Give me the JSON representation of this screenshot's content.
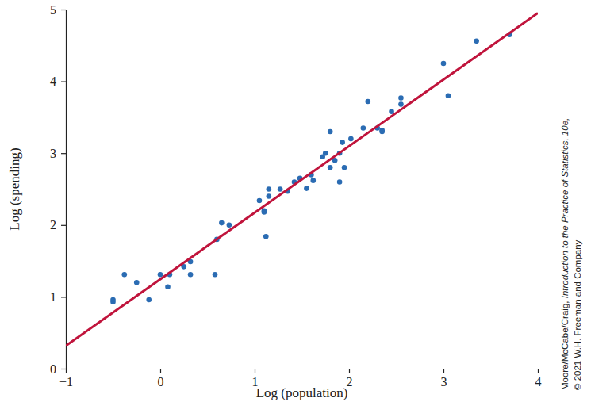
{
  "chart_data": {
    "type": "scatter",
    "x_label": "Log (population)",
    "y_label": "Log (spending)",
    "xlim": [
      -1,
      4
    ],
    "ylim": [
      0,
      5
    ],
    "xticks": [
      {
        "value": -1,
        "label": "−1"
      },
      0,
      1,
      2,
      3,
      4
    ],
    "yticks": [
      0,
      1,
      2,
      3,
      4,
      5
    ],
    "annotations": [
      "Moore/McCabe/Craig, ",
      "Introduction to the Practice of Statistics, 10e,",
      "© 2021 W.H. Freeman and Company"
    ],
    "series": [
      {
        "type": "scatter",
        "color": "#2b6cb3",
        "marker": "circle",
        "x": [
          -0.5,
          -0.5,
          -0.38,
          -0.25,
          -0.12,
          0,
          0.08,
          0.1,
          0.25,
          0.32,
          0.32,
          0.58,
          0.6,
          0.65,
          0.73,
          1.05,
          1.1,
          1.1,
          1.12,
          1.15,
          1.15,
          1.27,
          1.35,
          1.42,
          1.48,
          1.55,
          1.6,
          1.62,
          1.72,
          1.75,
          1.8,
          1.8,
          1.85,
          1.9,
          1.9,
          1.93,
          1.95,
          2.02,
          2.15,
          2.2,
          2.3,
          2.35,
          2.35,
          2.45,
          2.55,
          2.55,
          3.0,
          3.05,
          3.35,
          3.7
        ],
        "values": [
          0.93,
          0.96,
          1.31,
          1.2,
          0.96,
          1.31,
          1.14,
          1.31,
          1.42,
          1.49,
          1.31,
          1.31,
          1.8,
          2.03,
          2.0,
          2.34,
          2.2,
          2.18,
          1.84,
          2.5,
          2.4,
          2.5,
          2.47,
          2.6,
          2.65,
          2.51,
          2.7,
          2.62,
          2.95,
          3.0,
          2.8,
          3.3,
          2.9,
          3.0,
          2.6,
          3.15,
          2.8,
          3.2,
          3.35,
          3.72,
          3.35,
          3.3,
          3.32,
          3.58,
          3.68,
          3.77,
          4.25,
          3.8,
          4.56,
          4.65
        ]
      },
      {
        "type": "line",
        "color": "#c0143c",
        "line_style": "solid",
        "x": [
          -1,
          4
        ],
        "values": [
          0.32,
          4.95
        ]
      }
    ]
  }
}
